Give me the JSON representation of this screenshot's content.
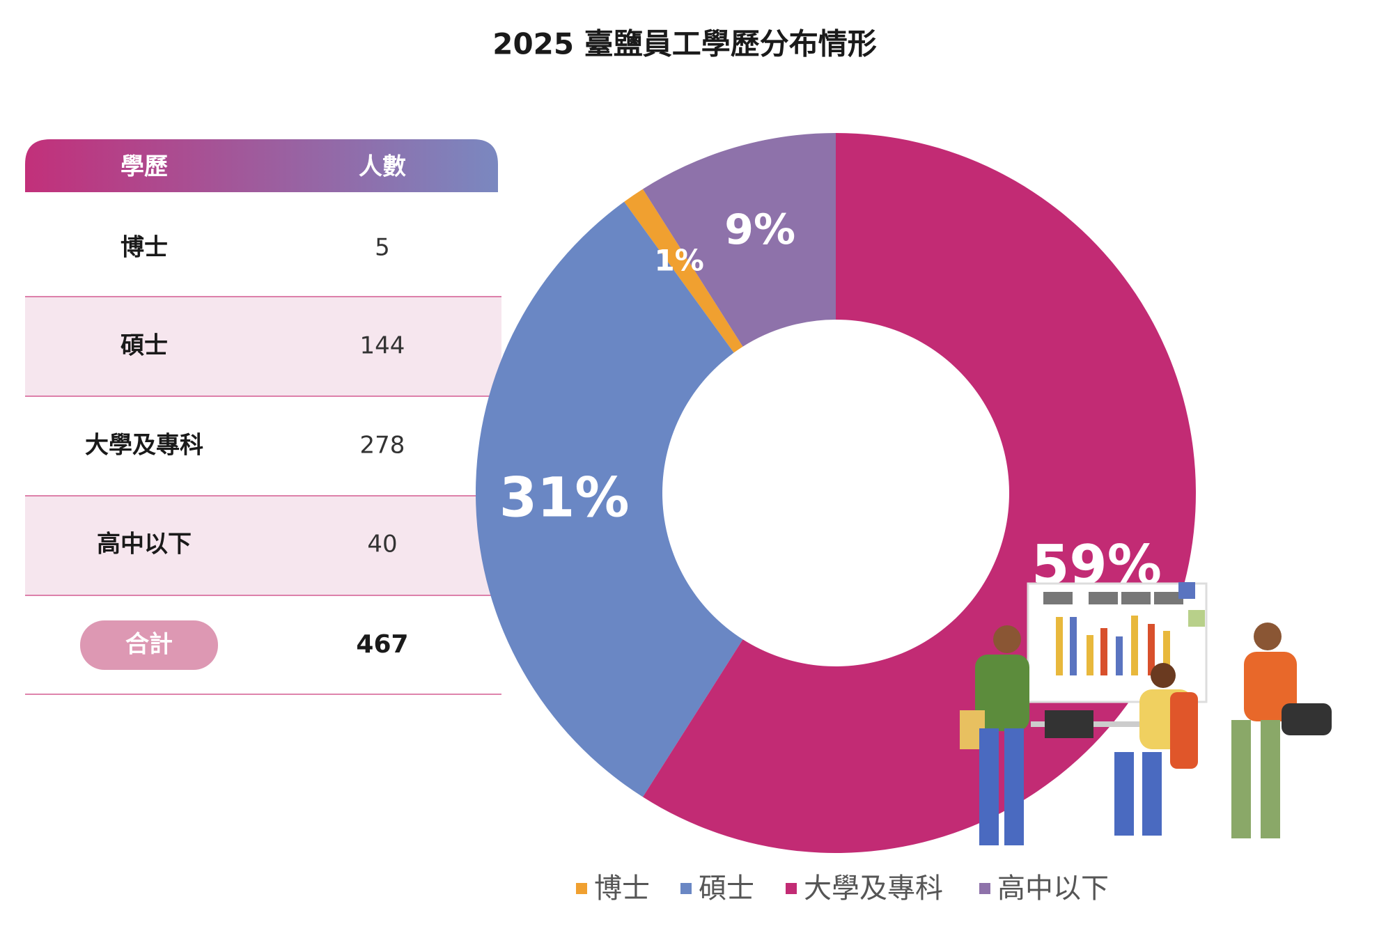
{
  "title": "2025 臺鹽員工學歷分布情形",
  "table": {
    "header": [
      "學歷",
      "人數"
    ],
    "rows": [
      [
        "博士",
        "5"
      ],
      [
        "碩士",
        "144"
      ],
      [
        "大學及專科",
        "278"
      ],
      [
        "高中以下",
        "40"
      ]
    ],
    "total": [
      "合計",
      "467"
    ]
  },
  "chart_data": {
    "type": "pie",
    "donut": true,
    "categories": [
      "博士",
      "碩士",
      "大學及專科",
      "高中以下"
    ],
    "values": [
      1,
      31,
      59,
      9
    ],
    "value_labels": [
      "1%",
      "31%",
      "59%",
      "9%"
    ],
    "colors": [
      "#f0a030",
      "#6a87c4",
      "#c22b74",
      "#8e72aa"
    ]
  }
}
